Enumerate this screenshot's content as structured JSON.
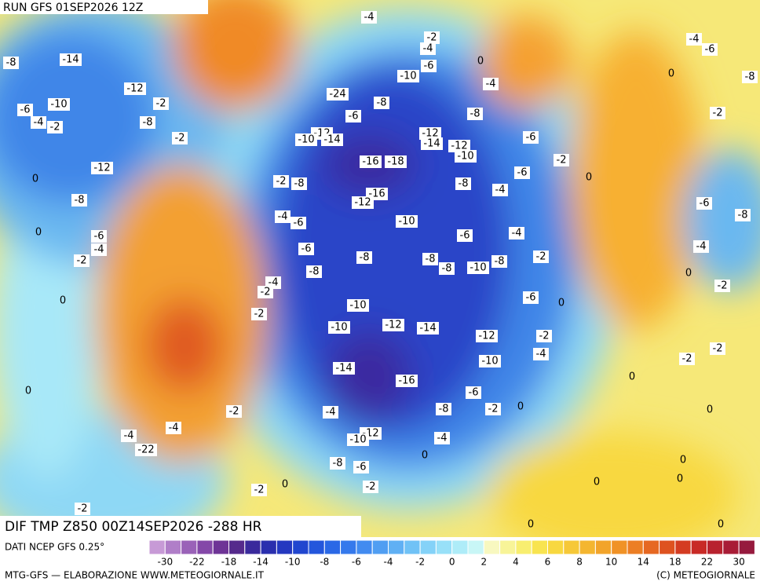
{
  "header": {
    "run": "RUN GFS 01SEP2026 12Z"
  },
  "map": {
    "caption": "DIF TMP Z850 00Z14SEP2026 -288 HR",
    "labels": [
      "-4",
      "-2",
      "-4",
      "0",
      "-6",
      "-10",
      "-4",
      "-8",
      "-24",
      "-6",
      "-8",
      "-12",
      "-10",
      "-14",
      "-12",
      "-14",
      "-12",
      "-10",
      "-6",
      "-16",
      "-18",
      "-6",
      "-2",
      "0",
      "-8",
      "-4",
      "-16",
      "-12",
      "-2",
      "-8",
      "-4",
      "-6",
      "-10",
      "-6",
      "-4",
      "-6",
      "-8",
      "-8",
      "-8",
      "-10",
      "-8",
      "-2",
      "-8",
      "-4",
      "-2",
      "-2",
      "-10",
      "-6",
      "0",
      "-10",
      "-12",
      "-14",
      "-12",
      "-2",
      "-4",
      "-10",
      "-14",
      "-16",
      "-6",
      "-8",
      "-2",
      "0",
      "-4",
      "-12",
      "-10",
      "-4",
      "0",
      "-8",
      "-6",
      "-2",
      "-2",
      "0",
      "-2",
      "0",
      "0",
      "0",
      "0",
      "0",
      "0",
      "0",
      "-2",
      "-2",
      "-2",
      "0",
      "-4",
      "-6",
      "-8",
      "-2",
      "0",
      "-8",
      "-4",
      "-6",
      "-8",
      "-14",
      "-12",
      "-10",
      "-6",
      "-4",
      "-2",
      "-8",
      "-2",
      "-2",
      "-12",
      "0",
      "-8",
      "0",
      "-6",
      "-4",
      "-2",
      "0",
      "-2",
      "-4",
      "-4",
      "-22",
      "0"
    ]
  },
  "legend": {
    "source": "DATI NCEP GFS 0.25°",
    "colors": [
      "#c79ad6",
      "#b07ec8",
      "#9a62b8",
      "#8448a8",
      "#6e3496",
      "#552a8c",
      "#3a2a9c",
      "#2a2fae",
      "#2438c0",
      "#2146cf",
      "#2356dc",
      "#2a68e6",
      "#3579ec",
      "#428bf0",
      "#509ef2",
      "#60b0f4",
      "#70c2f6",
      "#84d2f8",
      "#98e0f8",
      "#aeecf8",
      "#c8f6f6",
      "#f8f8c0",
      "#f8f498",
      "#f8ee70",
      "#f8e450",
      "#f8d840",
      "#f6c838",
      "#f4b630",
      "#f2a42a",
      "#f09226",
      "#ec7e24",
      "#e66822",
      "#de5220",
      "#d43c22",
      "#c82a26",
      "#b8222e",
      "#a81c36",
      "#961a3e"
    ],
    "labels": [
      -30,
      -22,
      -18,
      -14,
      -10,
      -8,
      -6,
      -4,
      -2,
      0,
      2,
      4,
      6,
      8,
      10,
      14,
      18,
      22,
      30
    ]
  },
  "footer": {
    "left": "MTG-GFS — ELABORAZIONE WWW.METEOGIORNALE.IT",
    "right": "(C) METEOGIORNALE"
  }
}
